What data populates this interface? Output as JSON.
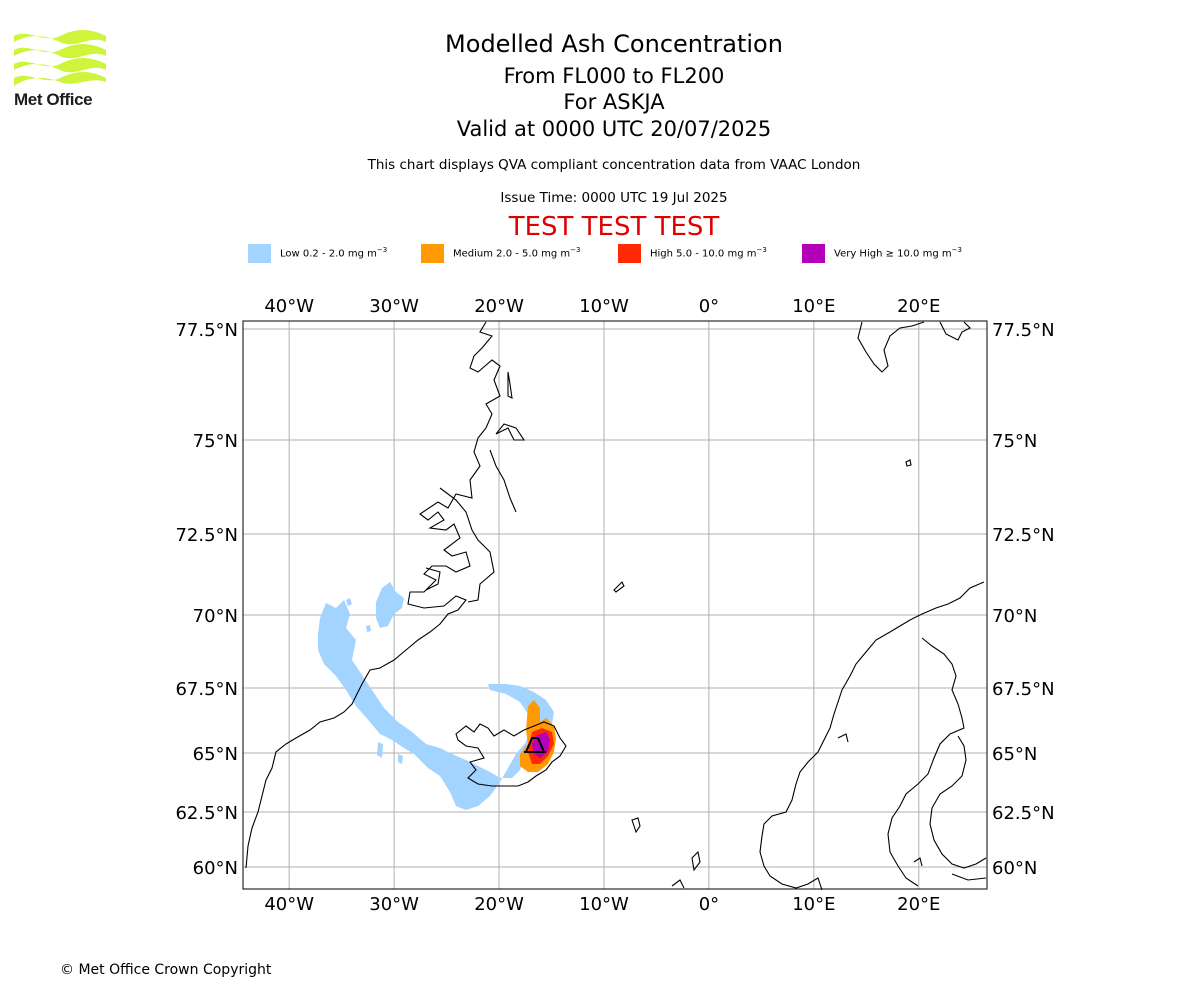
{
  "logo": {
    "text": "Met Office",
    "wave_color": "#ccf53c"
  },
  "titles": {
    "main": "Modelled Ash Concentration",
    "levels": "From FL000 to FL200",
    "volcano": "For ASKJA",
    "valid": "Valid at 0000 UTC 20/07/2025",
    "note": "This chart displays QVA compliant concentration data from VAAC London",
    "issue": "Issue Time: 0000 UTC 19 Jul 2025",
    "test_banner": "TEST TEST TEST"
  },
  "legend": [
    {
      "label": "Low 0.2 - 2.0 mg m",
      "exp": "−3",
      "color": "#a3d3ff"
    },
    {
      "label": "Medium 2.0 - 5.0 mg m",
      "exp": "−3",
      "color": "#ff9a04"
    },
    {
      "label": "High 5.0 - 10.0 mg m",
      "exp": "−3",
      "color": "#ff2a04"
    },
    {
      "label": "Very High  ≥  10.0 mg m",
      "exp": "−3",
      "color": "#b400b8"
    }
  ],
  "map": {
    "lon_ticks": [
      "40°W",
      "30°W",
      "20°W",
      "10°W",
      "0°",
      "10°E",
      "20°E"
    ],
    "lon_values": [
      -40,
      -30,
      -20,
      -10,
      0,
      10,
      20
    ],
    "lat_ticks": [
      "77.5°N",
      "75°N",
      "72.5°N",
      "70°N",
      "67.5°N",
      "65°N",
      "62.5°N",
      "60°N"
    ],
    "lat_values": [
      77.5,
      75,
      72.5,
      70,
      67.5,
      65,
      62.5,
      60
    ],
    "extent": {
      "lon_min": -44.4,
      "lon_max": 26.5,
      "lat_min": 59.3,
      "lat_max": 77.7
    },
    "volcano": {
      "name": "ASKJA",
      "lon": -16.75,
      "lat": 65.03
    },
    "grid": true,
    "coastline_color": "#000000",
    "grid_color": "#b0b0b0"
  },
  "footer": {
    "copyright": "© Met Office Crown Copyright"
  }
}
